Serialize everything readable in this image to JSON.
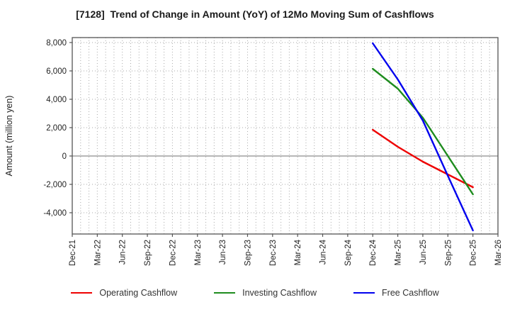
{
  "chart_data": {
    "type": "line",
    "title": "[7128]  Trend of Change in Amount (YoY) of 12Mo Moving Sum of Cashflows",
    "ylabel": "Amount (million yen)",
    "x_tick_labels": [
      "Dec-21",
      "Mar-22",
      "Jun-22",
      "Sep-22",
      "Dec-22",
      "Mar-23",
      "Jun-23",
      "Sep-23",
      "Dec-23",
      "Mar-24",
      "Jun-24",
      "Sep-24",
      "Dec-24",
      "Mar-25",
      "Jun-25",
      "Sep-25",
      "Dec-25",
      "Mar-26"
    ],
    "months_per_tick": 3,
    "total_months": 51,
    "y_ticks": [
      8000,
      6000,
      4000,
      2000,
      0,
      -2000,
      -4000
    ],
    "ylim": [
      -5500,
      8350
    ],
    "grid": true,
    "legend_position": "bottom",
    "series": [
      {
        "name": "Operating Cashflow",
        "color": "#ee0000",
        "x_labels": [
          "Dec-24",
          "Mar-25",
          "Jun-25",
          "Sep-25",
          "Dec-25"
        ],
        "x_months": [
          36,
          39,
          42,
          45,
          48
        ],
        "values": [
          1850,
          650,
          -400,
          -1300,
          -2200
        ]
      },
      {
        "name": "Investing Cashflow",
        "color": "#1e8c1e",
        "x_labels": [
          "Dec-24",
          "Mar-25",
          "Jun-25",
          "Sep-25",
          "Dec-25"
        ],
        "x_months": [
          36,
          39,
          42,
          45,
          48
        ],
        "values": [
          6150,
          4750,
          2700,
          0,
          -2700
        ]
      },
      {
        "name": "Free Cashflow",
        "color": "#0000ee",
        "x_labels": [
          "Dec-24",
          "Mar-25",
          "Jun-25",
          "Sep-25",
          "Dec-25"
        ],
        "x_months": [
          36,
          39,
          42,
          45,
          48
        ],
        "values": [
          7950,
          5400,
          2500,
          -1400,
          -5250
        ]
      }
    ],
    "colors": {
      "grid": "#aaaaaa",
      "zero_line": "#8c8c8c",
      "border": "#555555",
      "tick_text": "#222222",
      "title_text": "#1a1a1a"
    }
  }
}
